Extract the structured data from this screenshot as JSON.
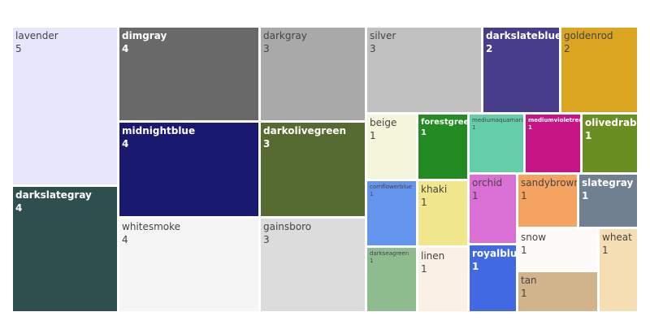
{
  "chart_data": {
    "type": "treemap",
    "title": "",
    "items": [
      {
        "name": "lavender",
        "value": 5,
        "color": "#e6e6fa"
      },
      {
        "name": "darkslategray",
        "value": 4,
        "color": "#2f4f4f"
      },
      {
        "name": "dimgray",
        "value": 4,
        "color": "#696969"
      },
      {
        "name": "midnightblue",
        "value": 4,
        "color": "#191970"
      },
      {
        "name": "whitesmoke",
        "value": 4,
        "color": "#f5f5f5"
      },
      {
        "name": "darkgray",
        "value": 3,
        "color": "#a9a9a9"
      },
      {
        "name": "darkolivegreen",
        "value": 3,
        "color": "#556b2f"
      },
      {
        "name": "gainsboro",
        "value": 3,
        "color": "#dcdcdc"
      },
      {
        "name": "silver",
        "value": 3,
        "color": "#c0c0c0"
      },
      {
        "name": "darkslateblue",
        "value": 2,
        "color": "#483d8b"
      },
      {
        "name": "goldenrod",
        "value": 2,
        "color": "#daa520"
      },
      {
        "name": "beige",
        "value": 1,
        "color": "#f5f5dc"
      },
      {
        "name": "forestgreen",
        "value": 1,
        "color": "#228b22"
      },
      {
        "name": "mediumaquamarine",
        "value": 1,
        "color": "#66cdaa"
      },
      {
        "name": "mediumvioletred",
        "value": 1,
        "color": "#c71585"
      },
      {
        "name": "olivedrab",
        "value": 1,
        "color": "#6b8e23"
      },
      {
        "name": "cornflowerblue",
        "value": 1,
        "color": "#6495ed"
      },
      {
        "name": "khaki",
        "value": 1,
        "color": "#f0e68c"
      },
      {
        "name": "orchid",
        "value": 1,
        "color": "#da70d6"
      },
      {
        "name": "sandybrown",
        "value": 1,
        "color": "#f4a460"
      },
      {
        "name": "slategray",
        "value": 1,
        "color": "#708090"
      },
      {
        "name": "darkseagreen",
        "value": 1,
        "color": "#8fbc8f"
      },
      {
        "name": "linen",
        "value": 1,
        "color": "#faf0e6"
      },
      {
        "name": "royalblue",
        "value": 1,
        "color": "#4169e1"
      },
      {
        "name": "snow",
        "value": 1,
        "color": "#fffafa"
      },
      {
        "name": "wheat",
        "value": 1,
        "color": "#f5deb3"
      },
      {
        "name": "tan",
        "value": 1,
        "color": "#d2b48c"
      }
    ]
  }
}
